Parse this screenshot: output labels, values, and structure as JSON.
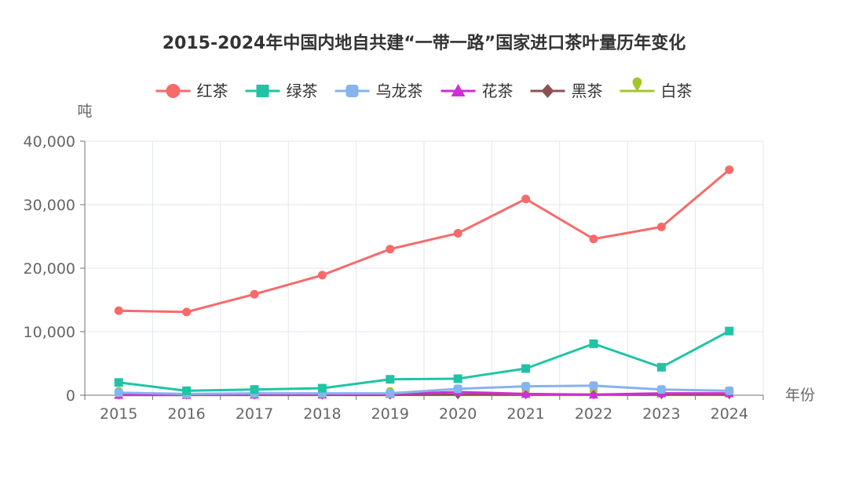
{
  "chart_data": {
    "type": "line",
    "title": "2015-2024年中国内地自共建“一带一路”国家进口茶叶量历年变化",
    "xlabel": "年份",
    "ylabel": "吨",
    "categories": [
      "2015",
      "2016",
      "2017",
      "2018",
      "2019",
      "2020",
      "2021",
      "2022",
      "2023",
      "2024"
    ],
    "ylim": [
      0,
      40000
    ],
    "yticks": [
      0,
      10000,
      20000,
      30000,
      40000
    ],
    "ytick_labels": [
      "0",
      "10,000",
      "20,000",
      "30,000",
      "40,000"
    ],
    "grid": true,
    "legend_position": "top-center",
    "series": [
      {
        "name": "红茶",
        "color": "#f86a6a",
        "marker": "circle",
        "values": [
          13300,
          13100,
          15900,
          18900,
          23000,
          25500,
          30900,
          24600,
          26500,
          35500
        ]
      },
      {
        "name": "绿茶",
        "color": "#20c4a4",
        "marker": "square",
        "values": [
          2000,
          700,
          900,
          1100,
          2500,
          2600,
          4200,
          8100,
          4400,
          10100
        ]
      },
      {
        "name": "乌龙茶",
        "color": "#85b4ee",
        "marker": "roundrect",
        "values": [
          400,
          200,
          300,
          300,
          300,
          1000,
          1400,
          1500,
          900,
          700
        ]
      },
      {
        "name": "花茶",
        "color": "#cf2fd6",
        "marker": "triangle",
        "values": [
          50,
          50,
          100,
          100,
          200,
          500,
          200,
          100,
          300,
          300
        ]
      },
      {
        "name": "黑茶",
        "color": "#8e5255",
        "marker": "diamond",
        "values": [
          50,
          50,
          50,
          50,
          50,
          100,
          100,
          100,
          100,
          100
        ]
      },
      {
        "name": "白茶",
        "color": "#a3c629",
        "marker": "pin",
        "values": [
          50,
          50,
          50,
          50,
          50,
          50,
          50,
          50,
          50,
          50
        ]
      }
    ]
  }
}
